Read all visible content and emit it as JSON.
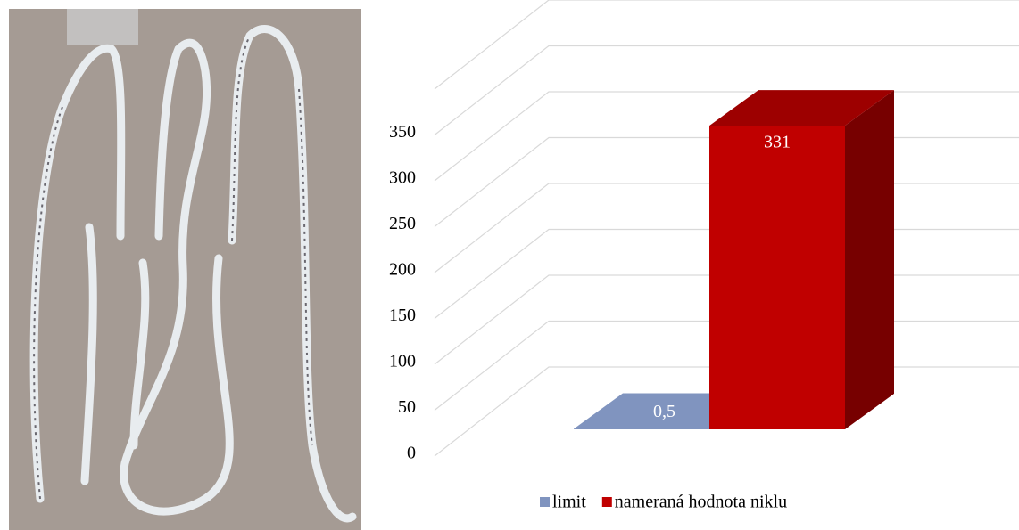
{
  "chart_data": {
    "type": "bar3d",
    "categories": [
      null
    ],
    "series": [
      {
        "name": "limit",
        "color": "#8094bf",
        "values": [
          0.5
        ],
        "value_labels": [
          "0,5"
        ]
      },
      {
        "name": "nameraná hodnota niklu",
        "color": "#c00000",
        "values": [
          331
        ],
        "value_labels": [
          "331"
        ]
      }
    ],
    "ylim": [
      0,
      400
    ],
    "yticks": [
      0,
      50,
      100,
      150,
      200,
      250,
      300,
      350
    ],
    "grid": true,
    "legend": "bottom"
  }
}
